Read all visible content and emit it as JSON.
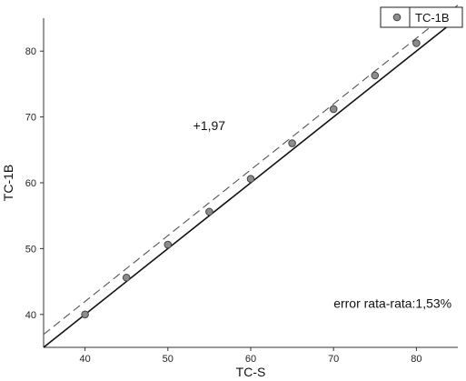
{
  "chart_data": {
    "type": "scatter",
    "xlabel": "TC-S",
    "ylabel": "TC-1B",
    "xlim": [
      35,
      85
    ],
    "ylim": [
      35,
      85
    ],
    "x_ticks": [
      40,
      50,
      60,
      70,
      80
    ],
    "y_ticks": [
      40,
      50,
      60,
      70,
      80
    ],
    "grid": false,
    "legend_position": "top-right",
    "series": [
      {
        "name": "TC-1B",
        "marker": "circle",
        "color": "#8c8c8c",
        "x": [
          40,
          45,
          50,
          55,
          60,
          65,
          70,
          75,
          80
        ],
        "y": [
          40.0,
          45.6,
          50.6,
          55.6,
          60.6,
          66.0,
          71.2,
          76.3,
          81.2
        ]
      }
    ],
    "lines": [
      {
        "style": "solid",
        "color": "#111111",
        "slope": 1,
        "intercept": 0
      },
      {
        "style": "dashed",
        "color": "#555555",
        "slope": 1,
        "intercept": 1.97
      }
    ],
    "annotations": [
      {
        "text": "+1,97",
        "x": 55,
        "y": 68
      },
      {
        "text": "error  rata-rata:1,53%",
        "x": 70,
        "y": 41
      }
    ]
  }
}
